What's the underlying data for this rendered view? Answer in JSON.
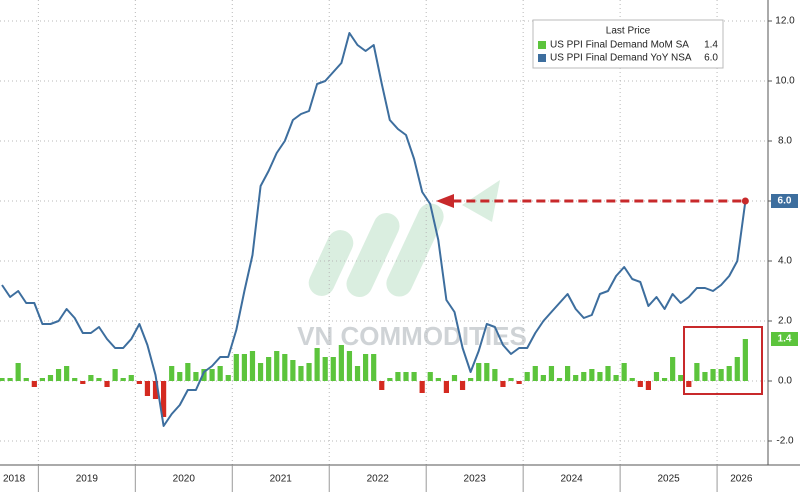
{
  "chart_data": {
    "type": "combo",
    "legend_title": "Last Price",
    "watermark": "VN COMMODITIES",
    "categories": [
      null,
      null,
      "2018",
      null,
      null,
      null,
      null,
      null,
      null,
      null,
      null,
      "2019",
      null,
      null,
      null,
      null,
      null,
      null,
      null,
      null,
      null,
      null,
      null,
      "2020",
      null,
      null,
      null,
      null,
      null,
      null,
      null,
      null,
      null,
      null,
      null,
      "2021",
      null,
      null,
      null,
      null,
      null,
      null,
      null,
      null,
      null,
      null,
      null,
      "2022",
      null,
      null,
      null,
      null,
      null,
      null,
      null,
      null,
      null,
      null,
      null,
      "2023",
      null,
      null,
      null,
      null,
      null,
      null,
      null,
      null,
      null,
      null,
      null,
      "2024",
      null,
      null,
      null,
      null,
      null,
      null,
      null,
      null,
      null,
      null,
      null,
      "2025",
      null,
      null,
      null,
      null,
      null,
      null,
      null,
      null,
      "2026"
    ],
    "series": [
      {
        "name": "US PPI Final Demand MoM SA",
        "type": "bar",
        "color": "#5cc43c",
        "negative_color": "#d42a20",
        "values": [
          0.1,
          0.1,
          0.6,
          0.1,
          -0.2,
          0.1,
          0.2,
          0.4,
          0.5,
          0.1,
          -0.1,
          0.2,
          0.1,
          -0.2,
          0.4,
          0.1,
          0.2,
          -0.1,
          -0.5,
          -0.6,
          -1.2,
          0.5,
          0.3,
          0.6,
          0.3,
          0.4,
          0.4,
          0.5,
          0.2,
          0.9,
          0.9,
          1.0,
          0.6,
          0.8,
          1.0,
          0.9,
          0.7,
          0.5,
          0.6,
          1.1,
          0.8,
          0.8,
          1.2,
          1.0,
          0.5,
          0.9,
          0.9,
          -0.3,
          0.1,
          0.3,
          0.3,
          0.3,
          -0.4,
          0.3,
          0.1,
          -0.4,
          0.2,
          -0.3,
          0.1,
          0.6,
          0.6,
          0.4,
          -0.2,
          0.1,
          -0.1,
          0.3,
          0.5,
          0.2,
          0.5,
          0.1,
          0.5,
          0.2,
          0.3,
          0.4,
          0.3,
          0.5,
          0.2,
          0.6,
          0.1,
          -0.2,
          -0.3,
          0.3,
          0.1,
          0.8,
          0.2,
          -0.2,
          0.6,
          0.3,
          0.4,
          0.4,
          0.5,
          0.8,
          1.4
        ]
      },
      {
        "name": "US PPI Final Demand YoY NSA",
        "type": "line",
        "color": "#3d6e9e",
        "values": [
          3.2,
          2.8,
          3.0,
          2.6,
          2.6,
          1.9,
          1.9,
          2.0,
          2.4,
          2.1,
          1.6,
          1.6,
          1.8,
          1.4,
          1.1,
          1.1,
          1.4,
          1.9,
          1.2,
          0.2,
          -1.5,
          -1.1,
          -0.8,
          -0.3,
          -0.3,
          0.3,
          0.5,
          0.8,
          0.8,
          1.7,
          3.0,
          4.2,
          6.5,
          7.0,
          7.6,
          8.0,
          8.7,
          8.9,
          9.0,
          9.9,
          10.0,
          10.3,
          10.6,
          11.6,
          11.2,
          11.0,
          11.2,
          9.9,
          8.7,
          8.4,
          8.2,
          7.4,
          6.3,
          5.9,
          4.7,
          2.7,
          2.3,
          1.1,
          0.3,
          1.0,
          1.9,
          1.8,
          1.2,
          0.9,
          1.1,
          1.1,
          1.6,
          2.0,
          2.3,
          2.6,
          2.9,
          2.4,
          2.1,
          2.2,
          2.9,
          3.0,
          3.5,
          3.8,
          3.4,
          3.3,
          2.5,
          2.8,
          2.4,
          2.9,
          2.6,
          2.8,
          3.1,
          3.1,
          3.0,
          3.2,
          3.5,
          4.0,
          6.0
        ],
        "value_labels": [
          null,
          null,
          null,
          null,
          null,
          null,
          null,
          null,
          null,
          null,
          null,
          null,
          null,
          null,
          null,
          null,
          null,
          null,
          null,
          null,
          null,
          null,
          null,
          null,
          null,
          null,
          null,
          null,
          null,
          null,
          null,
          null,
          null,
          null,
          null,
          null,
          null,
          null,
          null,
          null,
          null,
          null,
          null,
          null,
          null,
          null,
          null,
          null,
          null,
          null,
          null,
          null,
          null,
          null,
          null,
          null,
          null,
          null,
          null,
          null,
          null,
          null,
          null,
          null,
          null,
          null,
          null,
          null,
          null,
          null,
          null,
          null,
          null,
          null,
          null,
          null,
          null,
          null,
          null,
          null,
          null,
          null,
          null,
          null,
          null,
          null,
          null,
          null,
          null,
          null,
          null,
          null,
          "6.0"
        ]
      }
    ],
    "ylim": [
      -2.8,
      12.7
    ],
    "yticks": [
      {
        "value": -2,
        "label": "-2.0"
      },
      {
        "value": 0,
        "label": "0.0"
      },
      {
        "value": 2,
        "label": "2.0"
      },
      {
        "value": 4,
        "label": "4.0"
      },
      {
        "value": 6,
        "label": "6.0"
      },
      {
        "value": 8,
        "label": "8.0"
      },
      {
        "value": 10,
        "label": "10.0"
      },
      {
        "value": 12,
        "label": "12.0"
      }
    ],
    "grid": true,
    "axis_side": "right",
    "legend_position": "top-right"
  }
}
